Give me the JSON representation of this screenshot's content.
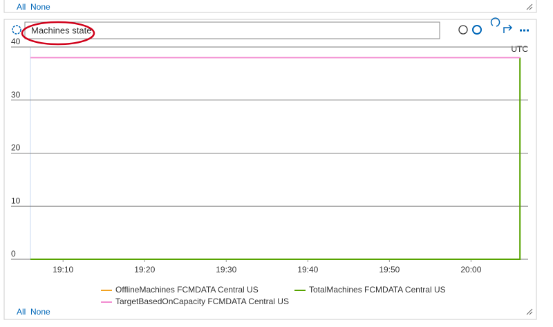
{
  "top_panel": {
    "links": [
      "All",
      "None"
    ]
  },
  "panel": {
    "links": [
      "All",
      "None"
    ],
    "timezone": "UTC"
  },
  "chart_data": {
    "type": "line",
    "title": "Machines state",
    "xlim": [
      "19:06",
      "20:07"
    ],
    "xticks": [
      "19:10",
      "19:20",
      "19:30",
      "19:40",
      "19:50",
      "20:00"
    ],
    "ylim": [
      0,
      40
    ],
    "yticks": [
      0,
      10,
      20,
      30,
      40
    ],
    "grid": true,
    "series": [
      {
        "name": "OfflineMachines FCMDATA Central US",
        "color": "#f2a321",
        "x": [
          "19:06",
          "20:06"
        ],
        "values": [
          0,
          0
        ]
      },
      {
        "name": "TotalMachines FCMDATA Central US",
        "color": "#57a300",
        "x": [
          "19:06",
          "20:06",
          "20:06"
        ],
        "values": [
          0,
          0,
          38
        ]
      },
      {
        "name": "TargetBasedOnCapacity FCMDATA Central US",
        "color": "#f28cd0",
        "x": [
          "19:06",
          "20:06"
        ],
        "values": [
          38,
          38
        ]
      }
    ]
  }
}
